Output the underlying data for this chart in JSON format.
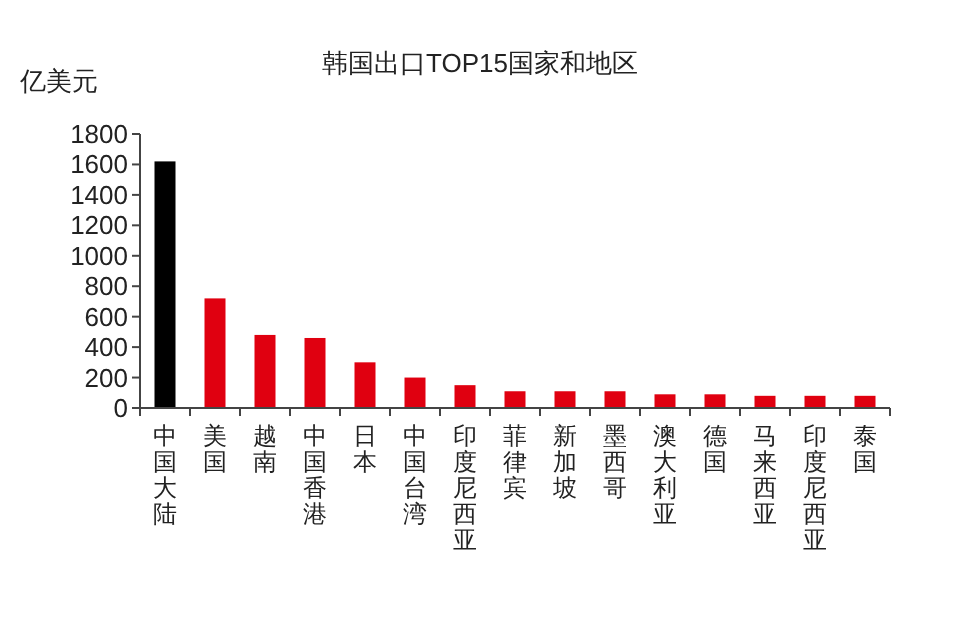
{
  "chart_data": {
    "type": "bar",
    "title": "韩国出口TOP15国家和地区",
    "ylabel": "亿美元",
    "categories": [
      "中国大陆",
      "美国",
      "越南",
      "中国香港",
      "日本",
      "中国台湾",
      "印度尼西亚",
      "菲律宾",
      "新加坡",
      "墨西哥",
      "澳大利亚",
      "德国",
      "马来西亚",
      "印度尼西亚",
      "泰国"
    ],
    "values": [
      1620,
      720,
      480,
      460,
      300,
      200,
      150,
      110,
      110,
      110,
      90,
      90,
      80,
      80,
      80
    ],
    "colors": [
      "#000000",
      "#e00010",
      "#e00010",
      "#e00010",
      "#e00010",
      "#e00010",
      "#e00010",
      "#e00010",
      "#e00010",
      "#e00010",
      "#e00010",
      "#e00010",
      "#e00010",
      "#e00010",
      "#e00010"
    ],
    "ylim": [
      0,
      1800
    ],
    "yticks": [
      0,
      200,
      400,
      600,
      800,
      1000,
      1200,
      1400,
      1600,
      1800
    ],
    "grid": false
  }
}
